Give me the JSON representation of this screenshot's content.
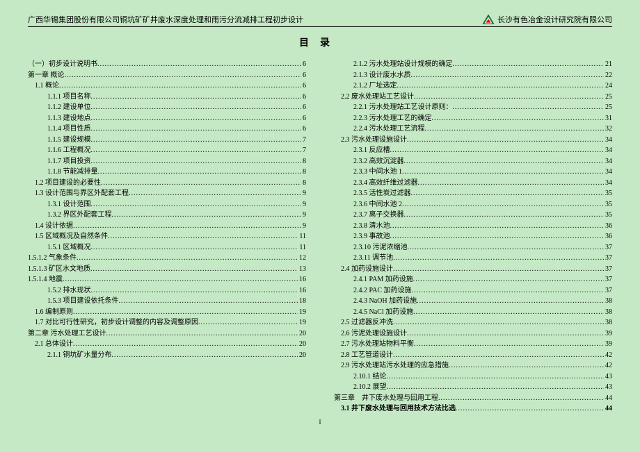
{
  "header": {
    "left": "广西华锡集团股份有限公司铜坑矿矿井废水深度处理和雨污分流减排工程初步设计",
    "right": "长沙有色冶金设计研究院有限公司",
    "logo_alt": "CHALIECO"
  },
  "title": "目录",
  "page_number": "I",
  "left_col": [
    {
      "label": "（一）初步设计说明书",
      "page": "6",
      "indent": 0
    },
    {
      "label": "第一章 概论",
      "page": "6",
      "indent": 0
    },
    {
      "label": "1.1 概论",
      "page": "6",
      "indent": 1
    },
    {
      "label": "1.1.1 项目名称",
      "page": "6",
      "indent": 2
    },
    {
      "label": "1.1.2 建设单位",
      "page": "6",
      "indent": 2
    },
    {
      "label": "1.1.3 建设地点",
      "page": "6",
      "indent": 2
    },
    {
      "label": "1.1.4 项目性质",
      "page": "6",
      "indent": 2
    },
    {
      "label": "1.1.5 建设规模",
      "page": "7",
      "indent": 2
    },
    {
      "label": "1.1.6 工程概况",
      "page": "7",
      "indent": 2
    },
    {
      "label": "1.1.7 项目投资",
      "page": "8",
      "indent": 2
    },
    {
      "label": "1.1.8 节能减排量",
      "page": "8",
      "indent": 2
    },
    {
      "label": "1.2 项目建设的必要性",
      "page": "8",
      "indent": 1
    },
    {
      "label": "1.3 设计范围与界区外配套工程",
      "page": "9",
      "indent": 1
    },
    {
      "label": "1.3.1 设计范围",
      "page": "9",
      "indent": 2
    },
    {
      "label": "1.3.2 界区外配套工程",
      "page": "9",
      "indent": 2
    },
    {
      "label": "1.4 设计依据",
      "page": "9",
      "indent": 1
    },
    {
      "label": "1.5 区域概况及自然条件",
      "page": "11",
      "indent": 1
    },
    {
      "label": "1.5.1 区域概况",
      "page": "11",
      "indent": 2
    },
    {
      "label": "1.5.1.2 气象条件",
      "page": "12",
      "indent": 0
    },
    {
      "label": "1.5.1.3 矿区水文地质",
      "page": "13",
      "indent": 0
    },
    {
      "label": "1.5.1.4 地震",
      "page": "16",
      "indent": 0
    },
    {
      "label": "1.5.2 排水现状",
      "page": "16",
      "indent": 2
    },
    {
      "label": "1.5.3 项目建设依托条件",
      "page": "18",
      "indent": 2
    },
    {
      "label": "1.6 编制原则",
      "page": "19",
      "indent": 1
    },
    {
      "label": "1.7 对比可行性研究，初步设计调整的内容及调整原因",
      "page": "19",
      "indent": 1
    },
    {
      "label": "第二章 污水处理工艺设计",
      "page": "20",
      "indent": 0
    },
    {
      "label": "2.1 总体设计",
      "page": "20",
      "indent": 1
    },
    {
      "label": "2.1.1 铜坑矿水量分布",
      "page": "20",
      "indent": 2
    }
  ],
  "right_col": [
    {
      "label": "2.1.2 污水处理站设计规模的确定",
      "page": "21",
      "indent": 2
    },
    {
      "label": "2.1.3 设计废水水质",
      "page": "22",
      "indent": 2
    },
    {
      "label": "2.1.2 厂址选定",
      "page": "24",
      "indent": 2
    },
    {
      "label": "2.2 废水处理站工艺设计",
      "page": "25",
      "indent": 1
    },
    {
      "label": "2.2.1 污水处理站工艺设计原则：",
      "page": "25",
      "indent": 2
    },
    {
      "label": "2.2.3 污水处理工艺的确定",
      "page": "31",
      "indent": 2
    },
    {
      "label": "2.2.4 污水处理工艺流程",
      "page": "32",
      "indent": 2
    },
    {
      "label": "2.3 污水处理设施设计",
      "page": "34",
      "indent": 1
    },
    {
      "label": "2.3.1 反应槽",
      "page": "34",
      "indent": 2
    },
    {
      "label": "2.3.2 高效沉淀器",
      "page": "34",
      "indent": 2
    },
    {
      "label": "2.3.3 中间水池 1",
      "page": "34",
      "indent": 2
    },
    {
      "label": "2.3.4 高效纤维过滤器",
      "page": "34",
      "indent": 2
    },
    {
      "label": "2.3.5 活性炭过滤器",
      "page": "35",
      "indent": 2
    },
    {
      "label": "2.3.6 中间水池 2",
      "page": "35",
      "indent": 2
    },
    {
      "label": "2.3.7 离子交换器",
      "page": "35",
      "indent": 2
    },
    {
      "label": "2.3.8 清水池",
      "page": "36",
      "indent": 2
    },
    {
      "label": "2.3.9 事故池",
      "page": "36",
      "indent": 2
    },
    {
      "label": "2.3.10 污泥浓缩池",
      "page": "37",
      "indent": 2
    },
    {
      "label": "2.3.11 调节池",
      "page": "37",
      "indent": 2
    },
    {
      "label": "2.4 加药设施设计",
      "page": "37",
      "indent": 1
    },
    {
      "label": "2.4.1 PAM 加药设施",
      "page": "37",
      "indent": 2
    },
    {
      "label": "2.4.2 PAC 加药设施",
      "page": "37",
      "indent": 2
    },
    {
      "label": "2.4.3 NaOH 加药设施",
      "page": "38",
      "indent": 2
    },
    {
      "label": "2.4.5 NaCl 加药设施",
      "page": "38",
      "indent": 2
    },
    {
      "label": "2.5 过滤器反冲洗",
      "page": "38",
      "indent": 1
    },
    {
      "label": "2.6 污泥处理设施设计",
      "page": "39",
      "indent": 1
    },
    {
      "label": "2.7 污水处理站物料平衡",
      "page": "39",
      "indent": 1
    },
    {
      "label": "2.8 工艺管道设计",
      "page": "42",
      "indent": 1
    },
    {
      "label": "2.9 污水处理站污水处理的应急措施",
      "page": "42",
      "indent": 1
    },
    {
      "label": "2.10.1 结论",
      "page": "43",
      "indent": 2
    },
    {
      "label": "2.10.2 展望",
      "page": "43",
      "indent": 2
    },
    {
      "label": "第三章　井下废水处理与回用工程",
      "page": "44",
      "indent": 0
    },
    {
      "label": "3.1 井下废水处理与回用技术方法比选",
      "page": "44",
      "indent": 1,
      "bold": true
    }
  ]
}
